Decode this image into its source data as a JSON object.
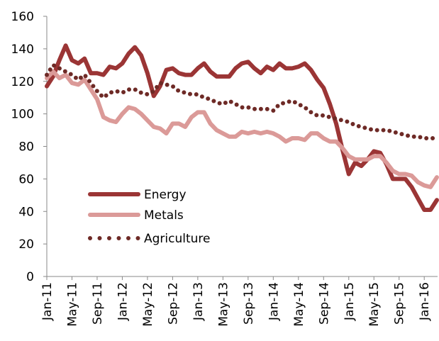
{
  "chart_data": {
    "type": "line",
    "categories": [
      "Jan-11",
      null,
      null,
      null,
      "May-11",
      null,
      null,
      null,
      "Sep-11",
      null,
      null,
      null,
      "Jan-12",
      null,
      null,
      null,
      "May-12",
      null,
      null,
      null,
      "Sep-12",
      null,
      null,
      null,
      "Jan-13",
      null,
      null,
      null,
      "May-13",
      null,
      null,
      null,
      "Sep-13",
      null,
      null,
      null,
      "Jan-14",
      null,
      null,
      null,
      "May-14",
      null,
      null,
      null,
      "Sep-14",
      null,
      null,
      null,
      "Jan-15",
      null,
      null,
      null,
      "May-15",
      null,
      null,
      null,
      "Sep-15",
      null,
      null,
      null,
      "Jan-16",
      null,
      null
    ],
    "series": [
      {
        "name": "Energy",
        "color": "#9b3535",
        "style": "solid",
        "values": [
          117,
          123,
          133,
          142,
          133,
          131,
          134,
          125,
          125,
          124,
          129,
          128,
          131,
          137,
          141,
          136,
          125,
          111,
          117,
          127,
          128,
          125,
          124,
          124,
          128,
          131,
          126,
          123,
          123,
          123,
          128,
          131,
          132,
          128,
          125,
          129,
          127,
          131,
          128,
          128,
          129,
          131,
          127,
          121,
          116,
          106,
          94,
          78,
          63,
          70,
          68,
          72,
          77,
          76,
          69,
          60,
          60,
          60,
          55,
          48,
          41,
          41,
          47
        ]
      },
      {
        "name": "Metals",
        "color": "#db9a98",
        "style": "solid",
        "values": [
          122,
          126,
          122,
          124,
          119,
          118,
          121,
          115,
          109,
          98,
          96,
          95,
          100,
          104,
          103,
          100,
          96,
          92,
          91,
          88,
          94,
          94,
          92,
          98,
          101,
          101,
          94,
          90,
          88,
          86,
          86,
          89,
          88,
          89,
          88,
          89,
          88,
          86,
          83,
          85,
          85,
          84,
          88,
          88,
          85,
          83,
          83,
          79,
          74,
          72,
          72,
          72,
          74,
          74,
          70,
          65,
          63,
          63,
          62,
          58,
          56,
          55,
          61
        ]
      },
      {
        "name": "Agriculture",
        "color": "#6e2a26",
        "style": "dotted",
        "values": [
          124,
          130,
          128,
          126,
          124,
          121,
          124,
          119,
          114,
          110,
          113,
          114,
          113,
          115,
          115,
          113,
          112,
          114,
          119,
          118,
          117,
          114,
          113,
          112,
          112,
          110,
          109,
          107,
          106,
          108,
          106,
          104,
          104,
          103,
          103,
          103,
          102,
          106,
          107,
          108,
          106,
          104,
          101,
          99,
          99,
          98,
          97,
          96,
          95,
          93,
          92,
          91,
          90,
          90,
          90,
          89,
          88,
          87,
          86,
          86,
          85,
          85,
          85
        ]
      }
    ],
    "ylim": [
      0,
      160
    ],
    "yticks": [
      0,
      20,
      40,
      60,
      80,
      100,
      120,
      140,
      160
    ],
    "grid": false
  }
}
